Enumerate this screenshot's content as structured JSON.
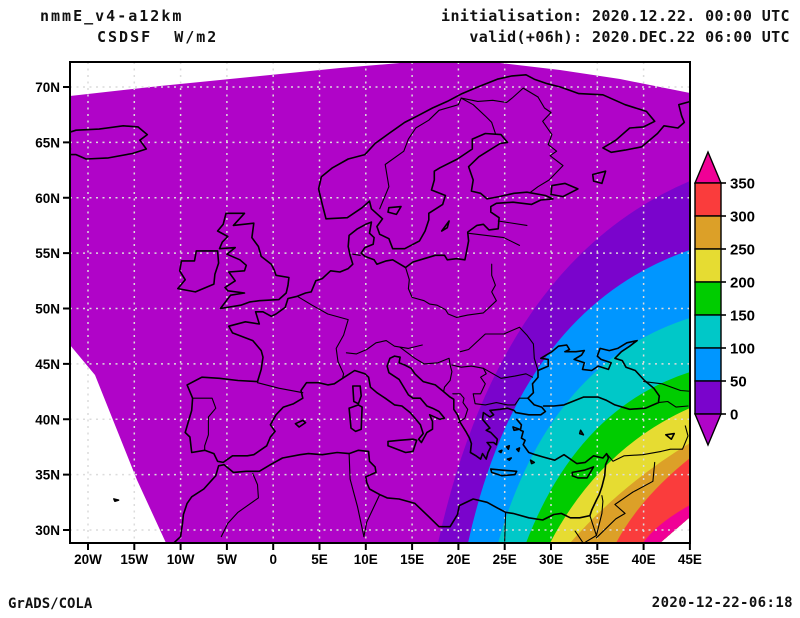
{
  "header": {
    "model": "nmmE_v4-a12km",
    "variable": "CSDSF  W/m2",
    "init_line": "initialisation: 2020.12.22. 00:00 UTC",
    "valid_line": "valid(+06h): 2020.DEC.22 06:00 UTC"
  },
  "footer": {
    "left": "GrADS/COLA",
    "right": "2020-12-22-06:18"
  },
  "axes": {
    "lat_labels": [
      "70N",
      "65N",
      "60N",
      "55N",
      "50N",
      "45N",
      "40N",
      "35N",
      "30N"
    ],
    "lon_labels": [
      "20W",
      "15W",
      "10W",
      "5W",
      "0",
      "5E",
      "10E",
      "15E",
      "20E",
      "25E",
      "30E",
      "35E",
      "40E",
      "45E"
    ]
  },
  "colorbar": {
    "tick_labels": [
      "350",
      "300",
      "250",
      "200",
      "150",
      "100",
      "50",
      "0"
    ],
    "segment_colors_top_to_bottom": [
      "red",
      "orange",
      "yellow",
      "green",
      "cyan",
      "blue",
      "violet"
    ],
    "arrow_top_color": "pink",
    "arrow_bottom_color": "purple"
  },
  "colors": {
    "purple": "#B004C8",
    "violet": "#7A04CC",
    "blue": "#0096FF",
    "cyan": "#00C8C8",
    "green": "#00CC00",
    "yellow": "#E6DC32",
    "orange": "#DCA028",
    "red": "#FA3C3C",
    "pink": "#F00096",
    "grid": "#DCDCDC",
    "line": "#000000",
    "background": "#FFFFFF"
  },
  "chart_data": {
    "type": "heatmap",
    "title": "CSDSF W/m2",
    "model_run": "nmmE_v4-a12km",
    "init": "2020.12.22 00:00 UTC",
    "valid": "2020.DEC.22 06:00 UTC (+06h)",
    "region": "Europe / NE Atlantic to Middle East",
    "x_axis": {
      "label": "longitude",
      "ticks": [
        "20W",
        "15W",
        "10W",
        "5W",
        "0",
        "5E",
        "10E",
        "15E",
        "20E",
        "25E",
        "30E",
        "35E",
        "40E",
        "45E"
      ]
    },
    "y_axis": {
      "label": "latitude",
      "ticks": [
        "30N",
        "35N",
        "40N",
        "45N",
        "50N",
        "55N",
        "60N",
        "65N",
        "70N"
      ]
    },
    "contour_levels_w_m2": [
      0,
      50,
      100,
      150,
      200,
      250,
      300,
      350
    ],
    "palette_low_to_high": [
      "#B004C8",
      "#7A04CC",
      "#0096FF",
      "#00C8C8",
      "#00CC00",
      "#E6DC32",
      "#DCA028",
      "#FA3C3C",
      "#F00096"
    ],
    "field_summary": "Clear-sky downward shortwave flux is 0 W/m2 (night, purple) over most of the domain; concentric terminator bands increase toward the sunlit southeast corner, exceeding 350 W/m2 near 35E-42E, 30N.",
    "grid": "dotted 5-degree lat/lon grid",
    "legend_position": "right vertical color bar with end arrows"
  }
}
